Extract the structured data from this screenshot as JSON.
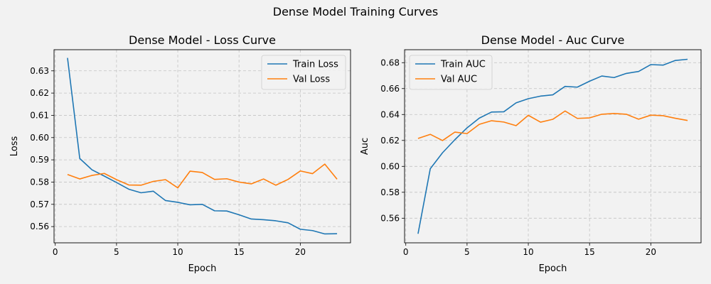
{
  "figure": {
    "suptitle": "Dense Model Training Curves",
    "background": "#f2f2f2"
  },
  "colors": {
    "train": "#1f77b4",
    "val": "#ff7f0e",
    "grid": "#b0b0b0"
  },
  "chart_data": [
    {
      "type": "line",
      "title": "Dense Model - Loss Curve",
      "xlabel": "Epoch",
      "ylabel": "Loss",
      "xlim": [
        -0.1,
        24.1
      ],
      "ylim": [
        0.5527,
        0.6395
      ],
      "xticks": [
        0,
        5,
        10,
        15,
        20
      ],
      "yticks": [
        0.56,
        0.57,
        0.58,
        0.59,
        0.6,
        0.61,
        0.62,
        0.63
      ],
      "ytick_labels": [
        "0.56",
        "0.57",
        "0.58",
        "0.59",
        "0.60",
        "0.61",
        "0.62",
        "0.63"
      ],
      "grid": true,
      "legend_position": "upper right",
      "x": [
        1,
        2,
        3,
        4,
        5,
        6,
        7,
        8,
        9,
        10,
        11,
        12,
        13,
        14,
        15,
        16,
        17,
        18,
        19,
        20,
        21,
        22,
        23
      ],
      "series": [
        {
          "name": "Train Loss",
          "color": "#1f77b4",
          "values": [
            0.6358,
            0.5906,
            0.5855,
            0.5827,
            0.5798,
            0.5768,
            0.5752,
            0.5759,
            0.5717,
            0.5709,
            0.5698,
            0.57,
            0.5671,
            0.567,
            0.5653,
            0.5634,
            0.5631,
            0.5626,
            0.5617,
            0.5588,
            0.5582,
            0.5567,
            0.5568
          ]
        },
        {
          "name": "Val Loss",
          "color": "#ff7f0e",
          "values": [
            0.5834,
            0.5814,
            0.583,
            0.5839,
            0.5811,
            0.5787,
            0.5786,
            0.5803,
            0.5811,
            0.5774,
            0.5849,
            0.5843,
            0.5812,
            0.5815,
            0.58,
            0.5792,
            0.5814,
            0.5786,
            0.5812,
            0.585,
            0.5838,
            0.5881,
            0.5813
          ]
        }
      ]
    },
    {
      "type": "line",
      "title": "Dense Model - Auc Curve",
      "xlabel": "Epoch",
      "ylabel": "Auc",
      "xlim": [
        -0.1,
        24.1
      ],
      "ylim": [
        0.541,
        0.69
      ],
      "xticks": [
        0,
        5,
        10,
        15,
        20
      ],
      "yticks": [
        0.56,
        0.58,
        0.6,
        0.62,
        0.64,
        0.66,
        0.68
      ],
      "ytick_labels": [
        "0.56",
        "0.58",
        "0.60",
        "0.62",
        "0.64",
        "0.66",
        "0.68"
      ],
      "grid": true,
      "legend_position": "upper left",
      "x": [
        1,
        2,
        3,
        4,
        5,
        6,
        7,
        8,
        9,
        10,
        11,
        12,
        13,
        14,
        15,
        16,
        17,
        18,
        19,
        20,
        21,
        22,
        23
      ],
      "series": [
        {
          "name": "Train AUC",
          "color": "#1f77b4",
          "values": [
            0.548,
            0.5982,
            0.6105,
            0.6205,
            0.6297,
            0.6372,
            0.6419,
            0.6421,
            0.649,
            0.6522,
            0.6542,
            0.6552,
            0.6617,
            0.6611,
            0.6657,
            0.6697,
            0.6685,
            0.6717,
            0.6732,
            0.6785,
            0.6781,
            0.6817,
            0.6826
          ]
        },
        {
          "name": "Val AUC",
          "color": "#ff7f0e",
          "values": [
            0.6215,
            0.6247,
            0.6199,
            0.6264,
            0.6253,
            0.6324,
            0.6352,
            0.6342,
            0.6314,
            0.6394,
            0.6341,
            0.6363,
            0.6427,
            0.637,
            0.6374,
            0.6402,
            0.6408,
            0.6402,
            0.6364,
            0.6395,
            0.6391,
            0.6371,
            0.6354
          ]
        }
      ]
    }
  ]
}
